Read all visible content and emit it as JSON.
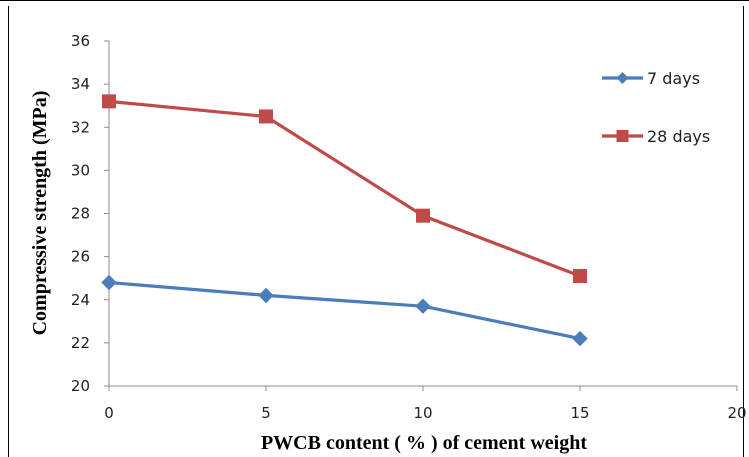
{
  "chart_data": {
    "type": "line",
    "title": "",
    "xlabel": "PWCB content ( % ) of cement weight",
    "ylabel": "Compressive strength  (MPa)",
    "xlim": [
      0,
      20
    ],
    "ylim": [
      20,
      36
    ],
    "x_ticks": [
      0,
      5,
      10,
      15,
      20
    ],
    "y_ticks": [
      20,
      22,
      24,
      26,
      28,
      30,
      32,
      34,
      36
    ],
    "grid": false,
    "legend_position": "right",
    "series": [
      {
        "name": "7 days",
        "color": "#4a7ebb",
        "marker": "diamond",
        "x": [
          0,
          5,
          10,
          15
        ],
        "y": [
          24.8,
          24.2,
          23.7,
          22.2
        ]
      },
      {
        "name": "28 days",
        "color": "#be4b48",
        "marker": "square",
        "x": [
          0,
          5,
          10,
          15
        ],
        "y": [
          33.2,
          32.5,
          27.9,
          25.1
        ]
      }
    ]
  }
}
